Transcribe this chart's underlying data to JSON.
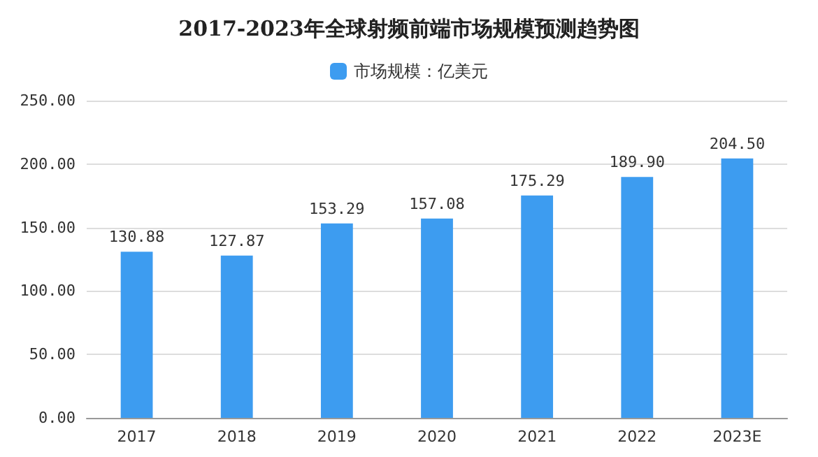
{
  "chart_data": {
    "type": "bar",
    "title": "2017-2023年全球射频前端市场规模预测趋势图",
    "categories": [
      "2017",
      "2018",
      "2019",
      "2020",
      "2021",
      "2022",
      "2023E"
    ],
    "series": [
      {
        "name": "市场规模：亿美元",
        "color": "#3d9cf0",
        "values": [
          130.88,
          127.87,
          153.29,
          157.08,
          175.29,
          189.9,
          204.5
        ],
        "value_labels": [
          "130.88",
          "127.87",
          "153.29",
          "157.08",
          "175.29",
          "189.90",
          "204.50"
        ]
      }
    ],
    "ylim": [
      0,
      250
    ],
    "yticks": [
      {
        "value": 0,
        "label": "0.00"
      },
      {
        "value": 50,
        "label": "50.00"
      },
      {
        "value": 100,
        "label": "100.00"
      },
      {
        "value": 150,
        "label": "150.00"
      },
      {
        "value": 200,
        "label": "200.00"
      },
      {
        "value": 250,
        "label": "250.00"
      }
    ],
    "grid": "y",
    "legend": "top"
  }
}
